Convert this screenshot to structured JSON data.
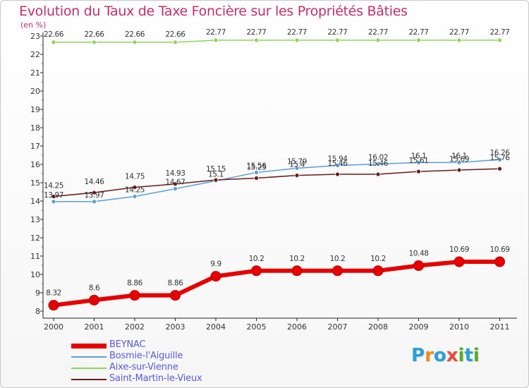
{
  "title": "Evolution du Taux de Taxe Foncière sur les Propriétés Bâties",
  "unit": "(en %)",
  "logo": {
    "letters": [
      "P",
      "r",
      "o",
      "x",
      "i",
      "t",
      "i"
    ],
    "colors": [
      "#2aa0d8",
      "#f08a1c",
      "#2aa0d8",
      "#e84c3c",
      "#5aaa2c",
      "#2aa0d8",
      "#5aaa2c"
    ]
  },
  "chart_data": {
    "type": "line",
    "categories": [
      "2000",
      "2001",
      "2002",
      "2003",
      "2004",
      "2005",
      "2006",
      "2007",
      "2008",
      "2009",
      "2010",
      "2011"
    ],
    "ylim": [
      8,
      23
    ],
    "yticks": [
      "8",
      "9",
      "10",
      "11",
      "12",
      "13",
      "14",
      "15",
      "16",
      "17",
      "18",
      "19",
      "20",
      "21",
      "22",
      "23"
    ],
    "grid": false,
    "series": [
      {
        "name": "BEYNAC",
        "color": "#e60000",
        "width": 6,
        "marker": 7,
        "values": [
          8.32,
          8.6,
          8.86,
          8.86,
          9.9,
          10.2,
          10.2,
          10.2,
          10.2,
          10.48,
          10.69,
          10.69
        ],
        "labels": [
          "8.32",
          "8.6",
          "8.86",
          "8.86",
          "9.9",
          "10.2",
          "10.2",
          "10.2",
          "10.2",
          "10.48",
          "10.69",
          "10.69"
        ]
      },
      {
        "name": "Bosmie-l'Aiguille",
        "color": "#5a9fd4",
        "width": 1.5,
        "marker": 3,
        "values": [
          13.97,
          13.97,
          14.25,
          14.67,
          15.1,
          15.56,
          15.79,
          15.94,
          16.02,
          16.1,
          16.1,
          16.26
        ],
        "labels": [
          "13.97",
          "13.97",
          "14.25",
          "14.67",
          "15.1",
          "15.56",
          "15.79",
          "15.94",
          "16.02",
          "16.1",
          "16.1",
          "16.26"
        ]
      },
      {
        "name": "Aixe-sur-Vienne",
        "color": "#8fd45a",
        "width": 1.5,
        "marker": 3,
        "values": [
          22.66,
          22.66,
          22.66,
          22.66,
          22.77,
          22.77,
          22.77,
          22.77,
          22.77,
          22.77,
          22.77,
          22.77
        ],
        "labels": [
          "22.66",
          "22.66",
          "22.66",
          "22.66",
          "22.77",
          "22.77",
          "22.77",
          "22.77",
          "22.77",
          "22.77",
          "22.77",
          "22.77"
        ]
      },
      {
        "name": "Saint-Martin-le-Vieux",
        "color": "#6b1a1a",
        "width": 1.5,
        "marker": 3,
        "values": [
          14.25,
          14.46,
          14.75,
          14.93,
          15.15,
          15.25,
          15.4,
          15.46,
          15.46,
          15.61,
          15.69,
          15.76
        ],
        "labels": [
          "14.25",
          "14.46",
          "14.75",
          "14.93",
          "15.15",
          "15.25",
          "15.4",
          "15.46",
          "15.46",
          "15.61",
          "15.69",
          "15.76"
        ]
      }
    ]
  }
}
